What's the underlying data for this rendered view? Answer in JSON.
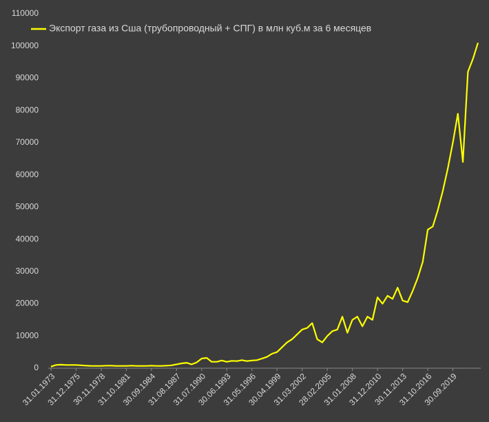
{
  "chart_data": {
    "type": "line",
    "categories": [
      "31.01.1973",
      null,
      null,
      null,
      null,
      "31.12.1975",
      null,
      null,
      null,
      null,
      "30.11.1978",
      null,
      null,
      null,
      null,
      "31.10.1981",
      null,
      null,
      null,
      null,
      "30.09.1984",
      null,
      null,
      null,
      null,
      "31.08.1987",
      null,
      null,
      null,
      null,
      "31.07.1990",
      null,
      null,
      null,
      null,
      "30.06.1993",
      null,
      null,
      null,
      null,
      "31.05.1996",
      null,
      null,
      null,
      null,
      "30.04.1999",
      null,
      null,
      null,
      null,
      "31.03.2002",
      null,
      null,
      null,
      null,
      "28.02.2005",
      null,
      null,
      null,
      null,
      "31.01.2008",
      null,
      null,
      null,
      null,
      "31.12.2010",
      null,
      null,
      null,
      null,
      "30.11.2013",
      null,
      null,
      null,
      null,
      "31.10.2016",
      null,
      null,
      null,
      null,
      "30.09.2019",
      null,
      null,
      null,
      null,
      null
    ],
    "series": [
      {
        "name": "Экспорт газа из Сша (трубопроводный + СПГ) в млн куб.м за 6 месяцев",
        "color": "#ffff00",
        "values": [
          500,
          1000,
          1100,
          1000,
          1000,
          1000,
          900,
          800,
          700,
          700,
          700,
          800,
          800,
          700,
          700,
          700,
          800,
          700,
          700,
          700,
          800,
          700,
          700,
          800,
          900,
          1200,
          1500,
          1700,
          1200,
          1800,
          3000,
          3200,
          2000,
          2000,
          2400,
          2000,
          2300,
          2200,
          2500,
          2200,
          2400,
          2500,
          3000,
          3500,
          4500,
          5000,
          6500,
          8000,
          9000,
          10500,
          12000,
          12500,
          14000,
          9000,
          8000,
          10000,
          11500,
          12000,
          16000,
          11000,
          15000,
          16000,
          13000,
          16000,
          15000,
          22000,
          20000,
          22500,
          21500,
          25000,
          21000,
          20500,
          24000,
          28000,
          33000,
          43000,
          44000,
          49000,
          55000,
          62000,
          70000,
          79000,
          64000,
          92000,
          96000,
          101000
        ]
      }
    ],
    "ylim": [
      0,
      110000
    ],
    "yticks": [
      0,
      10000,
      20000,
      30000,
      40000,
      50000,
      60000,
      70000,
      80000,
      90000,
      100000,
      110000
    ],
    "grid": false,
    "legend": "top"
  }
}
